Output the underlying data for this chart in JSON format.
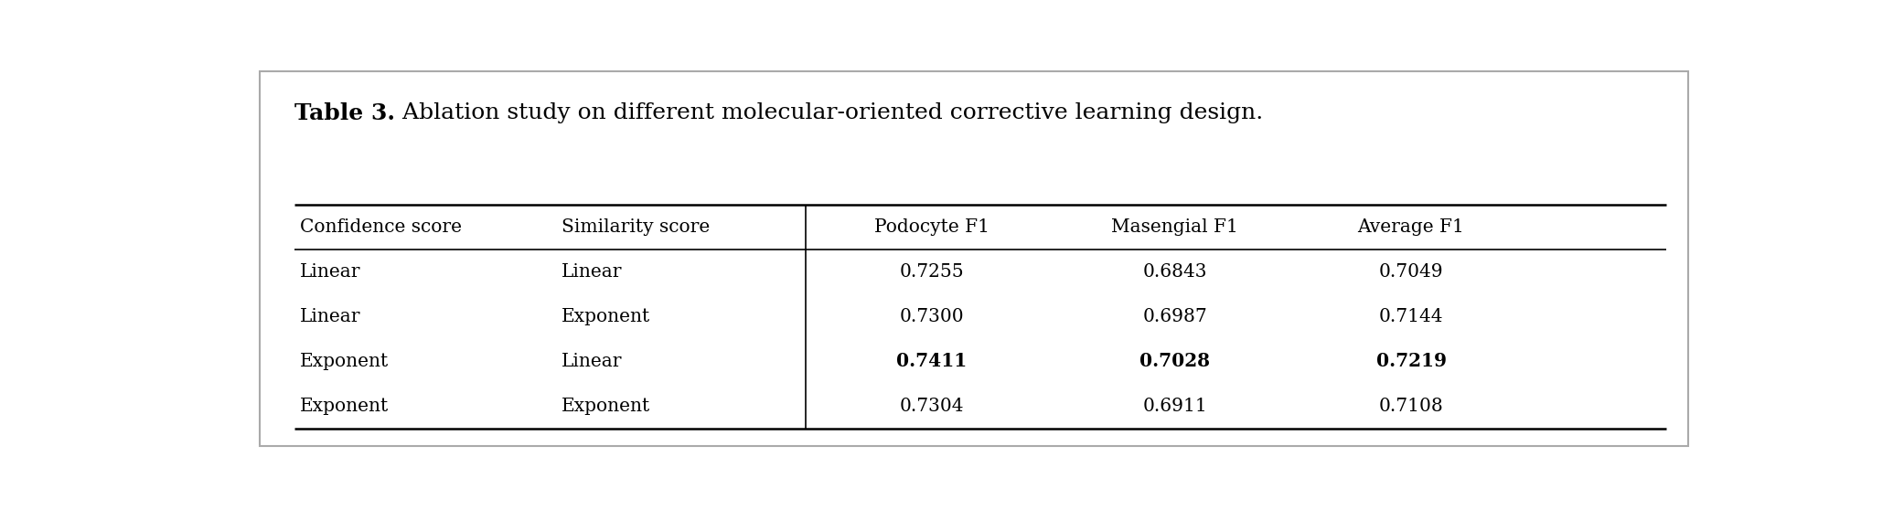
{
  "title_bold": "Table 3.",
  "title_rest": " Ablation study on different molecular-oriented corrective learning design.",
  "col_headers": [
    "Confidence score",
    "Similarity score",
    "Podocyte F1",
    "Masengial F1",
    "Average F1"
  ],
  "rows": [
    [
      "Linear",
      "Linear",
      "0.7255",
      "0.6843",
      "0.7049"
    ],
    [
      "Linear",
      "Exponent",
      "0.7300",
      "0.6987",
      "0.7144"
    ],
    [
      "Exponent",
      "Linear",
      "0.7411",
      "0.7028",
      "0.7219"
    ],
    [
      "Exponent",
      "Exponent",
      "0.7304",
      "0.6911",
      "0.7108"
    ]
  ],
  "bold_row": 2,
  "divider_col": 2,
  "background_color": "#ffffff",
  "border_color": "#aaaaaa",
  "title_fontsize": 18,
  "header_fontsize": 14.5,
  "cell_fontsize": 14.5
}
